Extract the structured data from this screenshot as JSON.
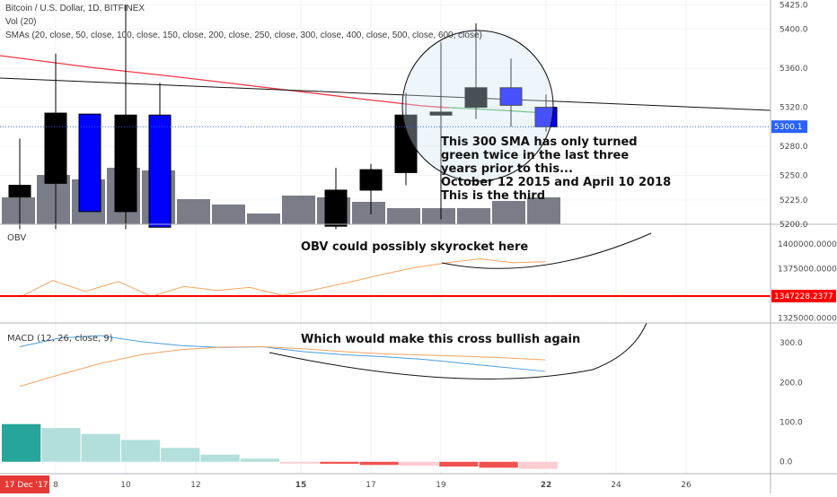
{
  "header": {
    "line1": "Bitcoin / U.S. Dollar, 1D, BITFINEX",
    "line2": "Vol (20)",
    "line3": "SMAs (20, close, 50, close, 100, close, 150, close, 200, close, 250, close, 300, close, 400, close, 500, close, 600, close)"
  },
  "colors": {
    "bull": "#000000",
    "bear": "#0000ff",
    "sma": "#f23645",
    "sma_green": "#4caf50",
    "volume": "#6b6f7a",
    "obv": "#f4a460",
    "obv_level": "#ff0000",
    "macd": "#4a9fe0",
    "signal": "#f4a460",
    "hist_pos_dark": "#26a69a",
    "hist_pos_light": "#b2dfdb",
    "hist_neg": "#ef5350",
    "hist_neg_light": "#ffcdd2",
    "price_line": "#2962ff"
  },
  "chart_data": [
    {
      "type": "candlestick",
      "name": "price",
      "ylim": [
        5200,
        5430
      ],
      "y_ticks": [
        "5425.0",
        "5400.0",
        "5360.0",
        "5320.0",
        "5280.0",
        "5250.0",
        "5225.0",
        "5200.0"
      ],
      "last_price_label": "5300.1",
      "candles": [
        {
          "o": 5228,
          "h": 5288,
          "l": 5195,
          "c": 5240,
          "dir": "up"
        },
        {
          "o": 5242,
          "h": 5375,
          "l": 5195,
          "c": 5314,
          "dir": "up"
        },
        {
          "o": 5313,
          "h": 5313,
          "l": 5213,
          "c": 5213,
          "dir": "down"
        },
        {
          "o": 5213,
          "h": 5425,
          "l": 5195,
          "c": 5312,
          "dir": "up"
        },
        {
          "o": 5312,
          "h": 5345,
          "l": 5197,
          "c": 5197,
          "dir": "down"
        },
        {
          "o": 5198,
          "h": 5258,
          "l": 5195,
          "c": 5235,
          "dir": "up"
        },
        {
          "o": 5235,
          "h": 5262,
          "l": 5210,
          "c": 5256,
          "dir": "up"
        },
        {
          "o": 5253,
          "h": 5335,
          "l": 5240,
          "c": 5312,
          "dir": "up"
        },
        {
          "o": 5312,
          "h": 5387,
          "l": 5205,
          "c": 5315,
          "dir": "up"
        },
        {
          "o": 5320,
          "h": 5406,
          "l": 5308,
          "c": 5340,
          "dir": "up"
        },
        {
          "o": 5340,
          "h": 5370,
          "l": 5300,
          "c": 5322,
          "dir": "down"
        },
        {
          "o": 5320,
          "h": 5333,
          "l": 5295,
          "c": 5300,
          "dir": "down"
        }
      ],
      "annotations": [
        "This 300 SMA has only turned",
        "green twice in the last three",
        "years prior to this...",
        "October 12 2015 and April 10 2018",
        "This is the third"
      ]
    },
    {
      "type": "line",
      "name": "OBV",
      "title": "OBV",
      "ylim": [
        1320000,
        1420000
      ],
      "y_ticks": [
        "1400000.0000",
        "1375000.0000",
        "1325000.0000"
      ],
      "level_label": "1347228.2377",
      "values": [
        1346000,
        1363000,
        1352000,
        1362000,
        1347000,
        1357000,
        1353000,
        1356000,
        1348000,
        1354000,
        1361000,
        1369000,
        1376000,
        1381000,
        1385000,
        1381000,
        1382000
      ],
      "annotation": "OBV could possibly skyrocket here"
    },
    {
      "type": "line",
      "name": "MACD",
      "title": "MACD (12, 26, close, 9)",
      "ylim": [
        -30,
        350
      ],
      "y_ticks": [
        "300.0",
        "200.0",
        "100.0",
        "0.0"
      ],
      "macd": [
        290,
        312,
        318,
        303,
        293,
        288,
        290,
        278,
        270,
        265,
        258,
        248,
        238,
        228
      ],
      "signal": [
        190,
        220,
        248,
        270,
        283,
        289,
        290,
        285,
        278,
        272,
        269,
        266,
        262,
        257
      ],
      "histogram": [
        95,
        85,
        70,
        55,
        35,
        18,
        8,
        -3,
        -5,
        -8,
        -10,
        -12,
        -15,
        -18
      ],
      "annotation": "Which would make this cross bullish again"
    }
  ],
  "x_axis": {
    "ticks": [
      "8",
      "10",
      "12",
      "15",
      "17",
      "19",
      "22",
      "24",
      "26"
    ],
    "start_label": "17 Dec '17"
  }
}
